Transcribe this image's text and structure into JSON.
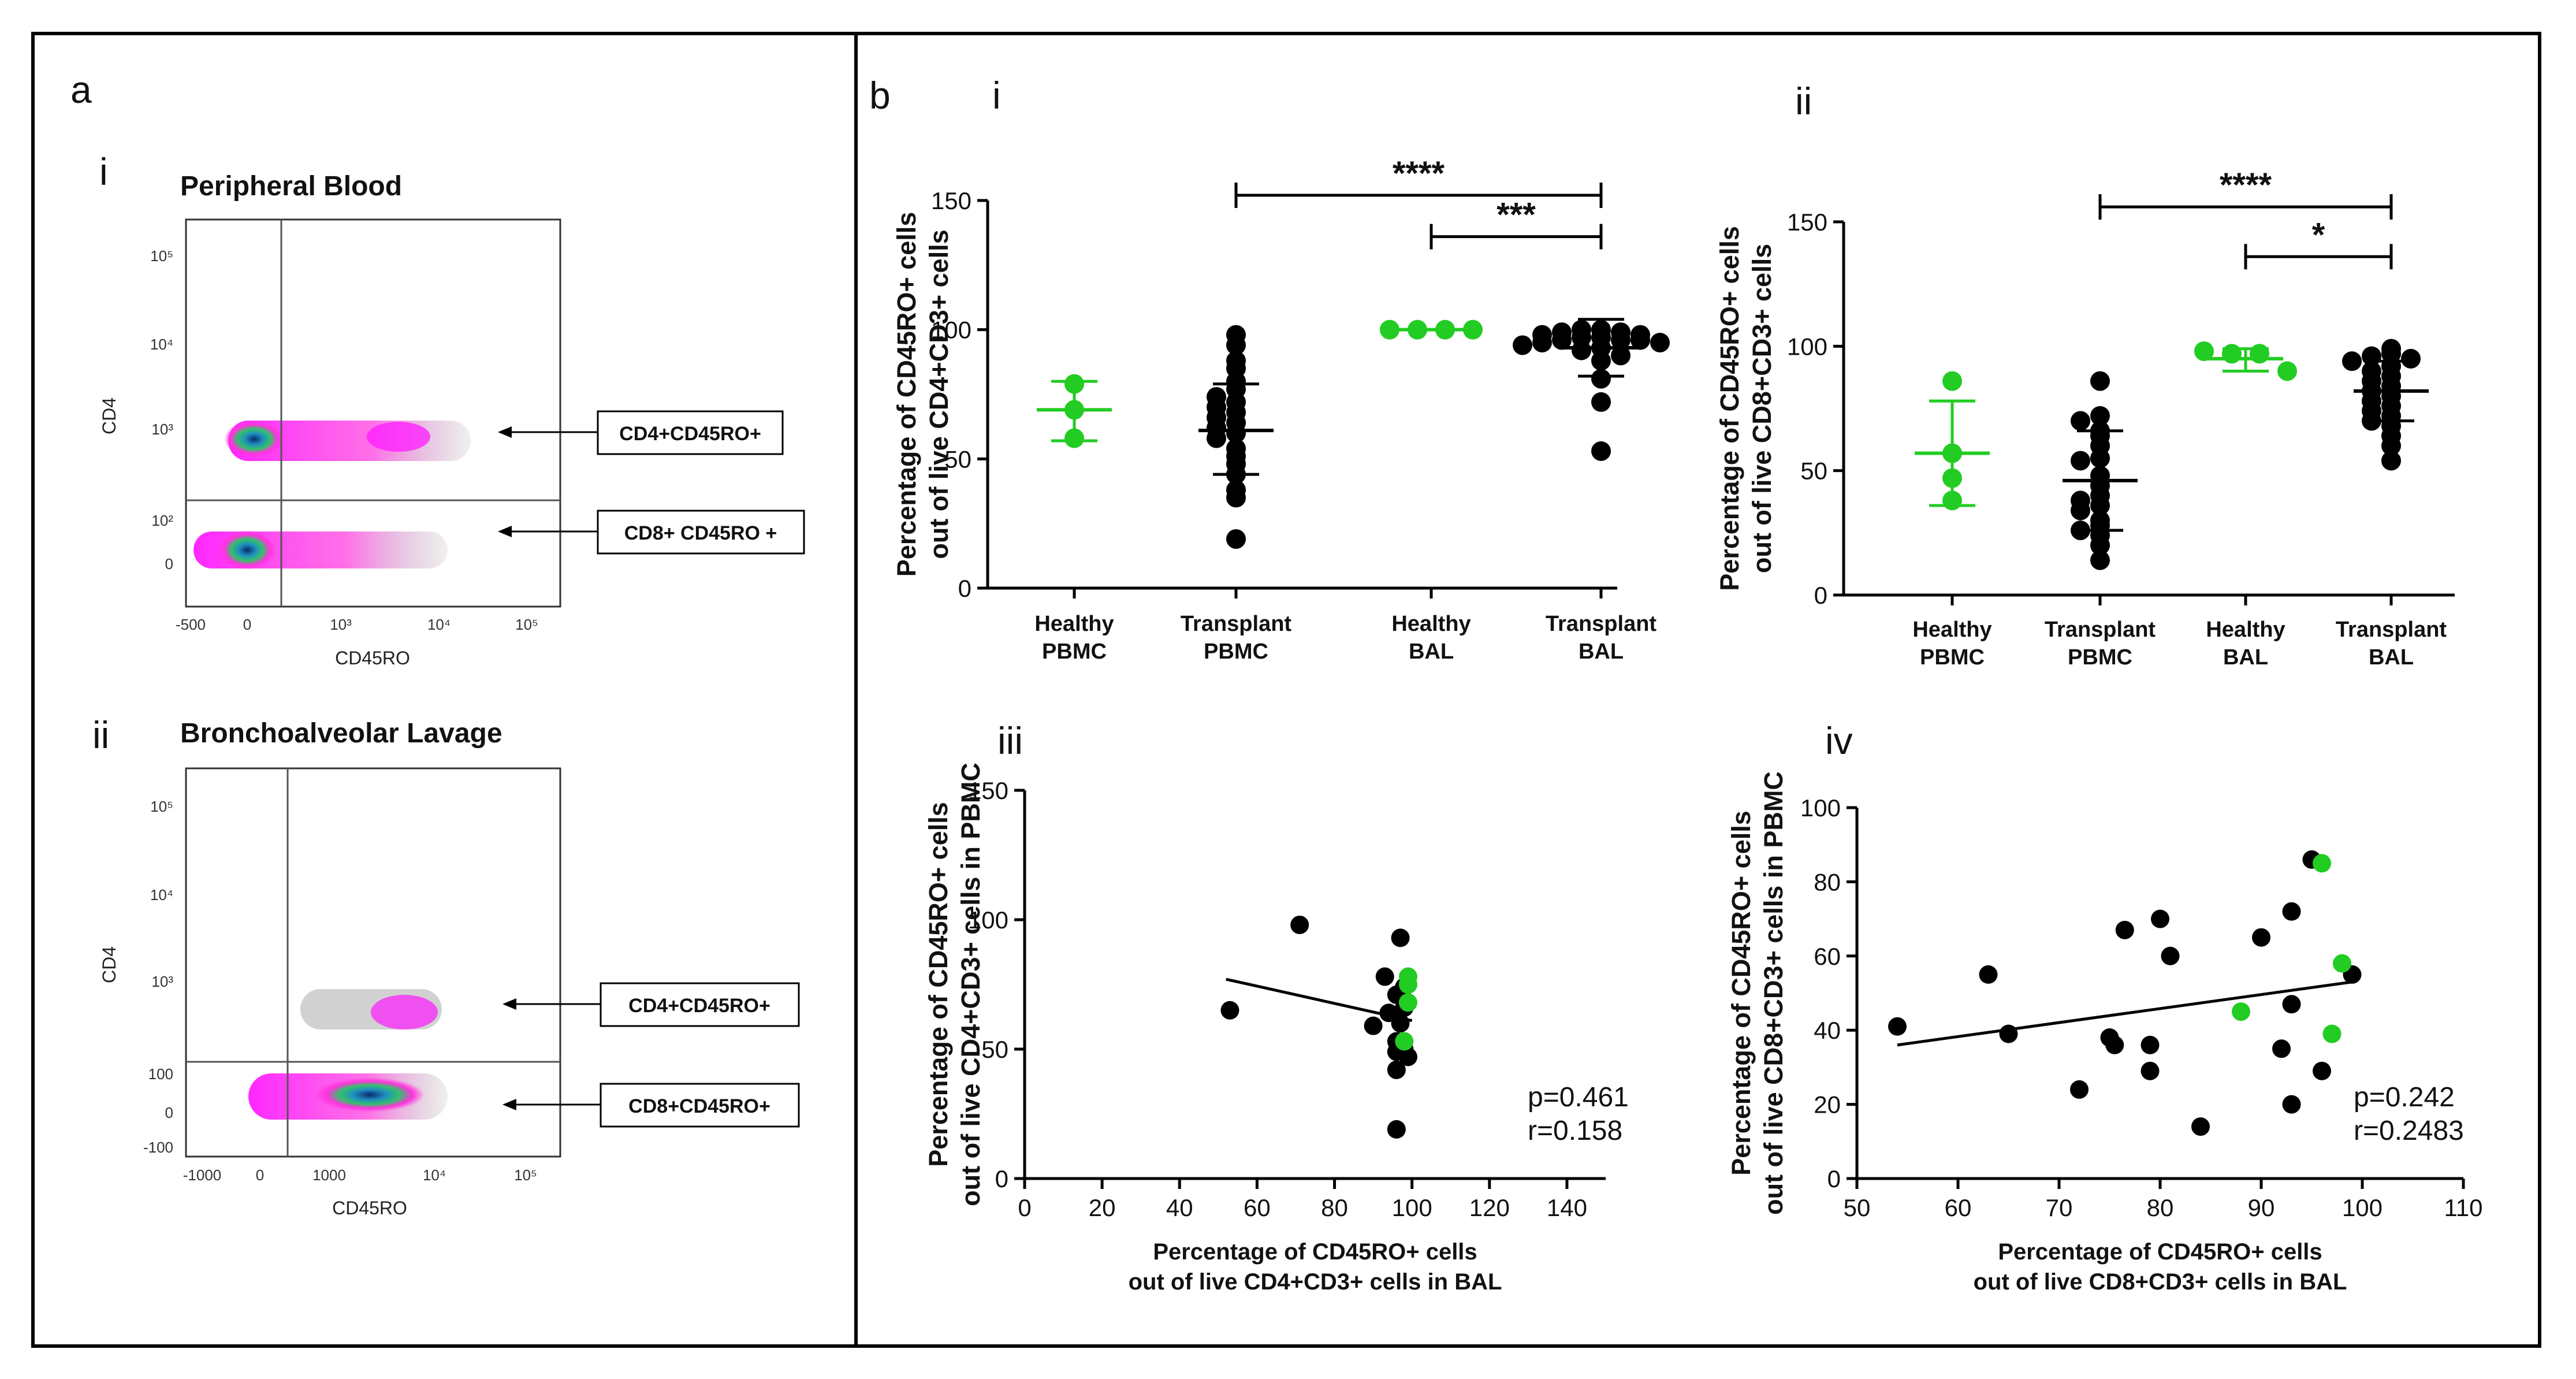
{
  "figure": {
    "panel_a_label": "a",
    "panel_b_label": "b",
    "colors": {
      "healthy": "#22cc22",
      "transplant": "#000000",
      "gate_line": "#555555",
      "dense": "#ff00ff"
    }
  },
  "flow_panels": [
    {
      "label": "i",
      "title": "Peripheral Blood",
      "y_axis": "CD4",
      "x_axis": "CD45RO",
      "y_ticks": [
        "10⁵",
        "10⁴",
        "10³",
        "10²",
        "0"
      ],
      "x_ticks": [
        "-500",
        "0",
        "10³",
        "10⁴",
        "10⁵"
      ],
      "gates": [
        "CD4+CD45RO+",
        "CD8+ CD45RO +"
      ]
    },
    {
      "label": "ii",
      "title": "Bronchoalveolar Lavage",
      "y_axis": "CD4",
      "x_axis": "CD45RO",
      "y_ticks": [
        "10⁵",
        "10⁴",
        "10³",
        "100",
        "0",
        "-100"
      ],
      "x_ticks": [
        "-1000",
        "0",
        "1000",
        "10⁴",
        "10⁵"
      ],
      "gates": [
        "CD4+CD45RO+",
        "CD8+CD45RO+"
      ]
    }
  ],
  "chart_data": [
    {
      "panel": "i",
      "type": "scatter",
      "ylabel_lines": [
        "Percentage of CD45RO+ cells",
        "out of live CD4+CD3+ cells"
      ],
      "ylim": [
        0,
        150
      ],
      "yticks": [
        0,
        50,
        100,
        150
      ],
      "categories": [
        [
          "Healthy",
          "PBMC"
        ],
        [
          "Transplant",
          "PBMC"
        ],
        [
          "Healthy",
          "BAL"
        ],
        [
          "Transplant",
          "BAL"
        ]
      ],
      "groups": [
        {
          "name": "Healthy PBMC",
          "color": "healthy",
          "mean": 69,
          "sd_low": 57,
          "sd_high": 80,
          "values": [
            79,
            69,
            58
          ]
        },
        {
          "name": "Transplant PBMC",
          "color": "transplant",
          "mean": 61,
          "sd_low": 44,
          "sd_high": 79,
          "values": [
            98,
            94,
            88,
            85,
            80,
            77,
            74,
            72,
            70,
            68,
            66,
            64,
            62,
            60,
            58,
            54,
            51,
            48,
            44,
            38,
            35,
            19
          ]
        },
        {
          "name": "Healthy BAL",
          "color": "healthy",
          "mean": 100,
          "sd_low": 100,
          "sd_high": 100,
          "values": [
            100,
            100,
            100,
            100
          ]
        },
        {
          "name": "Transplant BAL",
          "color": "transplant",
          "mean": 93,
          "sd_low": 82,
          "sd_high": 104,
          "values": [
            100,
            100,
            99,
            99,
            98,
            98,
            97,
            97,
            96,
            96,
            96,
            95,
            95,
            94,
            93,
            92,
            90,
            88,
            81,
            72,
            53
          ]
        }
      ],
      "significance": [
        {
          "from": 1,
          "to": 3,
          "label": "****",
          "y": 152
        },
        {
          "from": 2,
          "to": 3,
          "label": "***",
          "y": 136
        }
      ]
    },
    {
      "panel": "ii",
      "type": "scatter",
      "ylabel_lines": [
        "Percentage of CD45RO+ cells",
        "out of live CD8+CD3+ cells"
      ],
      "ylim": [
        0,
        150
      ],
      "yticks": [
        0,
        50,
        100,
        150
      ],
      "categories": [
        [
          "Healthy",
          "PBMC"
        ],
        [
          "Transplant",
          "PBMC"
        ],
        [
          "Healthy",
          "BAL"
        ],
        [
          "Transplant",
          "BAL"
        ]
      ],
      "groups": [
        {
          "name": "Healthy PBMC",
          "color": "healthy",
          "mean": 57,
          "sd_low": 36,
          "sd_high": 78,
          "values": [
            86,
            57,
            47,
            38
          ]
        },
        {
          "name": "Transplant PBMC",
          "color": "transplant",
          "mean": 46,
          "sd_low": 26,
          "sd_high": 66,
          "values": [
            86,
            72,
            70,
            66,
            64,
            60,
            55,
            54,
            48,
            44,
            40,
            38,
            36,
            34,
            30,
            28,
            26,
            24,
            20,
            14
          ]
        },
        {
          "name": "Healthy BAL",
          "color": "healthy",
          "mean": 95,
          "sd_low": 90,
          "sd_high": 99,
          "values": [
            98,
            97,
            97,
            90
          ]
        },
        {
          "name": "Transplant BAL",
          "color": "transplant",
          "mean": 82,
          "sd_low": 70,
          "sd_high": 94,
          "values": [
            99,
            97,
            96,
            95,
            94,
            92,
            90,
            88,
            86,
            84,
            82,
            80,
            78,
            76,
            74,
            72,
            70,
            68,
            64,
            60,
            54
          ]
        }
      ],
      "significance": [
        {
          "from": 1,
          "to": 3,
          "label": "****",
          "y": 156
        },
        {
          "from": 2,
          "to": 3,
          "label": "*",
          "y": 136
        }
      ]
    },
    {
      "panel": "iii",
      "type": "scatter",
      "xlabel_lines": [
        "Percentage of CD45RO+ cells",
        "out of live CD4+CD3+ cells in BAL"
      ],
      "ylabel_lines": [
        "Percentage of CD45RO+ cells",
        "out of live CD4+CD3+ cells in PBMC"
      ],
      "xlim": [
        0,
        150
      ],
      "ylim": [
        0,
        150
      ],
      "xticks": [
        0,
        20,
        40,
        60,
        80,
        100,
        120,
        140
      ],
      "yticks": [
        0,
        50,
        100,
        150
      ],
      "fit": {
        "x1": 52,
        "y1": 77,
        "x2": 100,
        "y2": 61
      },
      "stats": [
        "p=0.461",
        "r=0.158"
      ],
      "points": [
        {
          "x": 53,
          "y": 65,
          "group": "transplant"
        },
        {
          "x": 71,
          "y": 98,
          "group": "transplant"
        },
        {
          "x": 90,
          "y": 59,
          "group": "transplant"
        },
        {
          "x": 93,
          "y": 78,
          "group": "transplant"
        },
        {
          "x": 94,
          "y": 64,
          "group": "transplant"
        },
        {
          "x": 96,
          "y": 71,
          "group": "transplant"
        },
        {
          "x": 96,
          "y": 53,
          "group": "transplant"
        },
        {
          "x": 96,
          "y": 49,
          "group": "transplant"
        },
        {
          "x": 96,
          "y": 42,
          "group": "transplant"
        },
        {
          "x": 96,
          "y": 19,
          "group": "transplant"
        },
        {
          "x": 97,
          "y": 93,
          "group": "transplant"
        },
        {
          "x": 97,
          "y": 60,
          "group": "transplant"
        },
        {
          "x": 98,
          "y": 74,
          "group": "transplant"
        },
        {
          "x": 98,
          "y": 66,
          "group": "transplant"
        },
        {
          "x": 98,
          "y": 50,
          "group": "transplant"
        },
        {
          "x": 99,
          "y": 47,
          "group": "transplant"
        },
        {
          "x": 99,
          "y": 78,
          "group": "healthy"
        },
        {
          "x": 99,
          "y": 75,
          "group": "healthy"
        },
        {
          "x": 99,
          "y": 68,
          "group": "healthy"
        },
        {
          "x": 98,
          "y": 53,
          "group": "healthy"
        }
      ]
    },
    {
      "panel": "iv",
      "type": "scatter",
      "xlabel_lines": [
        "Percentage of CD45RO+ cells",
        "out of live CD8+CD3+ cells in BAL"
      ],
      "ylabel_lines": [
        "Percentage of CD45RO+ cells",
        "out of live CD8+CD3+ cells in PBMC"
      ],
      "xlim": [
        50,
        110
      ],
      "ylim": [
        0,
        100
      ],
      "xticks": [
        50,
        60,
        70,
        80,
        90,
        100,
        110
      ],
      "yticks": [
        0,
        20,
        40,
        60,
        80,
        100
      ],
      "fit": {
        "x1": 54,
        "y1": 36,
        "x2": 99,
        "y2": 53
      },
      "stats": [
        "p=0.242",
        "r=0.2483"
      ],
      "points": [
        {
          "x": 54,
          "y": 41,
          "group": "transplant"
        },
        {
          "x": 63,
          "y": 55,
          "group": "transplant"
        },
        {
          "x": 65,
          "y": 39,
          "group": "transplant"
        },
        {
          "x": 72,
          "y": 24,
          "group": "transplant"
        },
        {
          "x": 75,
          "y": 38,
          "group": "transplant"
        },
        {
          "x": 75.5,
          "y": 36,
          "group": "transplant"
        },
        {
          "x": 76.5,
          "y": 67,
          "group": "transplant"
        },
        {
          "x": 79,
          "y": 36,
          "group": "transplant"
        },
        {
          "x": 79,
          "y": 29,
          "group": "transplant"
        },
        {
          "x": 80,
          "y": 70,
          "group": "transplant"
        },
        {
          "x": 81,
          "y": 60,
          "group": "transplant"
        },
        {
          "x": 84,
          "y": 14,
          "group": "transplant"
        },
        {
          "x": 90,
          "y": 65,
          "group": "transplant"
        },
        {
          "x": 92,
          "y": 35,
          "group": "transplant"
        },
        {
          "x": 93,
          "y": 72,
          "group": "transplant"
        },
        {
          "x": 93,
          "y": 47,
          "group": "transplant"
        },
        {
          "x": 93,
          "y": 20,
          "group": "transplant"
        },
        {
          "x": 95,
          "y": 86,
          "group": "transplant"
        },
        {
          "x": 96,
          "y": 29,
          "group": "transplant"
        },
        {
          "x": 99,
          "y": 55,
          "group": "transplant"
        },
        {
          "x": 96,
          "y": 85,
          "group": "healthy"
        },
        {
          "x": 98,
          "y": 58,
          "group": "healthy"
        },
        {
          "x": 88,
          "y": 45,
          "group": "healthy"
        },
        {
          "x": 97,
          "y": 39,
          "group": "healthy"
        }
      ]
    }
  ]
}
